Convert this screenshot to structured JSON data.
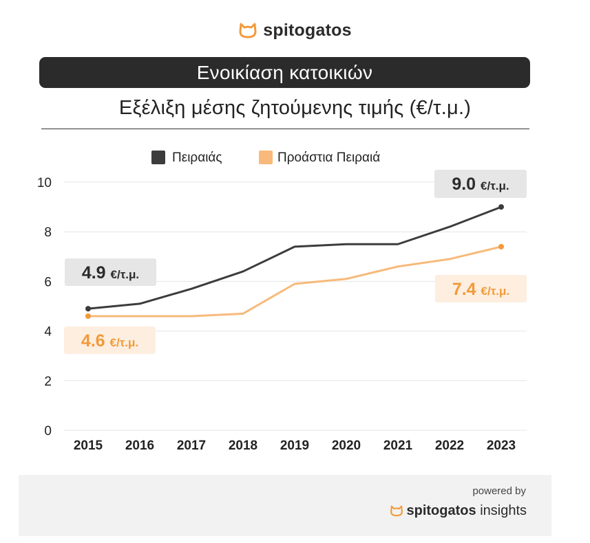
{
  "brand": {
    "name": "spitogatos"
  },
  "banner": {
    "title": "Ενοικίαση κατοικιών"
  },
  "subtitle": "Εξέλιξη μέσης ζητούμενης τιμής (€/τ.μ.)",
  "colors": {
    "piraeus": "#3c3c3c",
    "suburbs": "#f8b97a",
    "accent": "#f29a38",
    "banner": "#2b2b2b"
  },
  "chart_data": {
    "type": "line",
    "categories": [
      "2015",
      "2016",
      "2017",
      "2018",
      "2019",
      "2020",
      "2021",
      "2022",
      "2023"
    ],
    "series": [
      {
        "name": "Πειραιάς",
        "values": [
          4.9,
          5.1,
          5.7,
          6.4,
          7.4,
          7.5,
          7.5,
          8.2,
          9.0
        ]
      },
      {
        "name": "Προάστια Πειραιά",
        "values": [
          4.6,
          4.6,
          4.6,
          4.7,
          5.9,
          6.1,
          6.6,
          6.9,
          7.4
        ]
      }
    ],
    "ylim": [
      0,
      10
    ],
    "yticks": [
      "0",
      "2",
      "4",
      "6",
      "8",
      "10"
    ],
    "grid": true,
    "legend_position": "top-center",
    "annotations": {
      "piraeus_start": {
        "value": "4.9",
        "unit": "€/τ.μ."
      },
      "piraeus_end": {
        "value": "9.0",
        "unit": "€/τ.μ."
      },
      "suburbs_start": {
        "value": "4.6",
        "unit": "€/τ.μ."
      },
      "suburbs_end": {
        "value": "7.4",
        "unit": "€/τ.μ."
      }
    }
  },
  "footer": {
    "powered_by": "powered by",
    "brand_bold": "spitogatos",
    "brand_suffix": "insights"
  }
}
